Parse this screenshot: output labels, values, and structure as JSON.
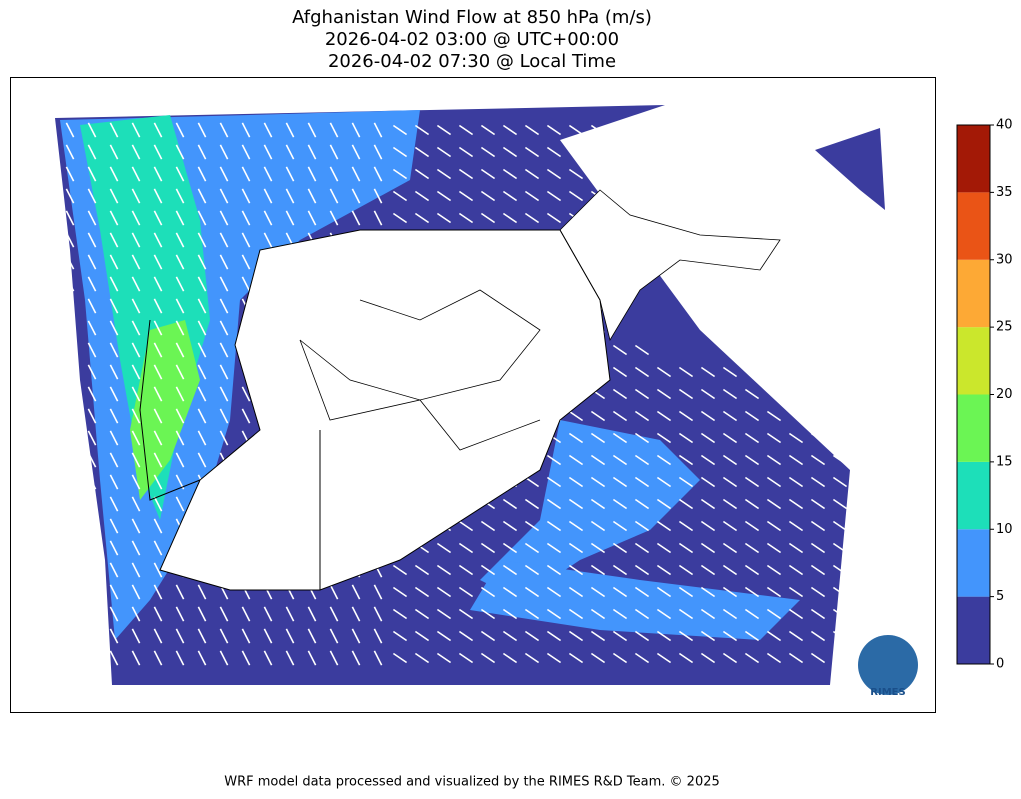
{
  "title": [
    "Afghanistan Wind Flow at 850 hPa (m/s)",
    "2026-04-02 03:00 @ UTC+00:00",
    "2026-04-02 07:30 @ Local Time"
  ],
  "colorbar": {
    "lim": [
      0,
      40
    ],
    "ticks": [
      0,
      5,
      10,
      15,
      20,
      25,
      30,
      35,
      40
    ],
    "colors": [
      "#3b3c9e",
      "#4395fc",
      "#1ddfb9",
      "#6bf554",
      "#cbe72c",
      "#fda935",
      "#ea5416",
      "#a31906"
    ]
  },
  "logo": "RIMES",
  "footer": "WRF model data processed and visualized by the RIMES R&D Team. © 2025"
}
